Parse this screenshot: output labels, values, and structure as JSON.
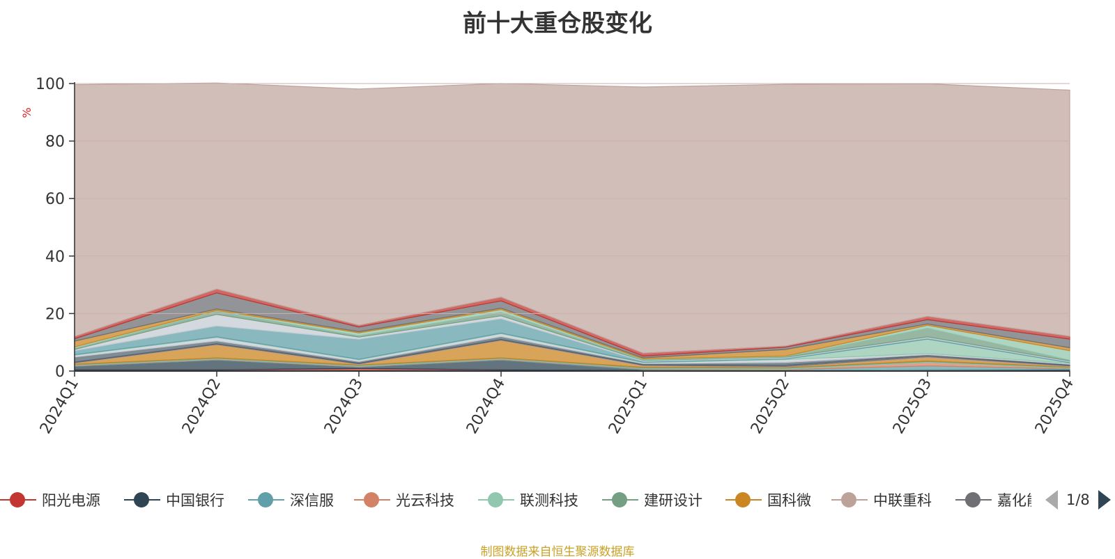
{
  "chart_data": {
    "type": "area",
    "title": "前十大重仓股变化",
    "ylabel": "%",
    "ylim": [
      0,
      100
    ],
    "yticks": [
      0,
      20,
      40,
      60,
      80,
      100
    ],
    "grid": true,
    "stacked": true,
    "categories": [
      "2024Q1",
      "2024Q2",
      "2024Q3",
      "2024Q4",
      "2025Q1",
      "2025Q2",
      "2025Q3",
      "2025Q4"
    ],
    "series": [
      {
        "name": "阳光电源",
        "color": "#c23531",
        "values": [
          0.4,
          0.4,
          0.9,
          0.4,
          0.2,
          0.1,
          0.2,
          0.2
        ]
      },
      {
        "name": "中国银行",
        "color": "#2f4554",
        "values": [
          1.2,
          3.4,
          0.4,
          3.4,
          0.2,
          0.1,
          0.2,
          0.3
        ]
      },
      {
        "name": "深信服",
        "color": "#61a0a8",
        "values": [
          0.2,
          0.2,
          0.2,
          0.2,
          0.3,
          0.3,
          1.4,
          0.3
        ]
      },
      {
        "name": "光云科技",
        "color": "#d48265",
        "values": [
          0.2,
          0.2,
          0.2,
          0.2,
          0.2,
          0.2,
          1.2,
          0.2
        ]
      },
      {
        "name": "联测科技",
        "color": "#91c7ae",
        "values": [
          0.2,
          0.2,
          0.2,
          0.2,
          0.2,
          0.3,
          0.3,
          0.2
        ]
      },
      {
        "name": "建研设计",
        "color": "#749f83",
        "values": [
          0.2,
          0.2,
          0.2,
          0.2,
          0.2,
          0.2,
          0.2,
          0.2
        ]
      },
      {
        "name": "国科微",
        "color": "#ca8622",
        "values": [
          0.3,
          4.5,
          0.2,
          6.0,
          0.5,
          0.2,
          1.2,
          0.2
        ]
      },
      {
        "name": "中联重科",
        "color": "#bda29a",
        "values": [
          0.2,
          0.2,
          0.2,
          0.2,
          0.2,
          0.2,
          0.3,
          0.2
        ]
      },
      {
        "name": "嘉化能源",
        "color": "#6e7074",
        "values": [
          0.2,
          0.2,
          0.2,
          0.2,
          0.2,
          0.4,
          0.4,
          0.2
        ]
      },
      {
        "name": "",
        "color": "#546570",
        "values": [
          1.8,
          1.0,
          0.6,
          1.0,
          0.4,
          1.0,
          0.3,
          0.4
        ]
      },
      {
        "name": "",
        "color": "#c4ccd3",
        "values": [
          0.6,
          1.2,
          0.6,
          1.0,
          0.3,
          1.0,
          0.4,
          0.3
        ]
      },
      {
        "name": "",
        "color": "#91c7ae",
        "values": [
          0.2,
          0.2,
          0.2,
          0.2,
          0.2,
          0.2,
          5.0,
          0.2
        ]
      },
      {
        "name": "",
        "color": "#61a0a8",
        "values": [
          1.4,
          3.8,
          7.0,
          5.0,
          0.3,
          0.3,
          0.4,
          0.3
        ]
      },
      {
        "name": "",
        "color": "#c4ccd3",
        "values": [
          0.4,
          4.0,
          0.7,
          1.0,
          0.3,
          0.3,
          0.4,
          0.3
        ]
      },
      {
        "name": "",
        "color": "#749f83",
        "values": [
          0.4,
          1.0,
          0.5,
          1.2,
          0.2,
          0.2,
          3.0,
          0.3
        ]
      },
      {
        "name": "",
        "color": "#91c7ae",
        "values": [
          0.5,
          0.4,
          1.0,
          1.0,
          0.3,
          0.2,
          1.0,
          3.3
        ]
      },
      {
        "name": "",
        "color": "#ca8622",
        "values": [
          2.0,
          0.5,
          0.4,
          0.5,
          0.4,
          2.3,
          0.5,
          1.0
        ]
      },
      {
        "name": "",
        "color": "#6e7074",
        "values": [
          0.8,
          5.6,
          1.6,
          2.5,
          0.6,
          0.8,
          1.5,
          3.0
        ]
      },
      {
        "name": "",
        "color": "#c23531",
        "values": [
          0.8,
          1.3,
          0.6,
          1.3,
          1.0,
          0.4,
          1.1,
          1.0
        ]
      },
      {
        "name": "",
        "color": "#bda29a",
        "values": [
          87.6,
          71.7,
          82.2,
          74.3,
          92.6,
          91.0,
          80.9,
          85.6
        ]
      }
    ]
  },
  "legend": {
    "items": [
      {
        "label": "阳光电源",
        "color": "#c23531"
      },
      {
        "label": "中国银行",
        "color": "#2f4554"
      },
      {
        "label": "深信服",
        "color": "#61a0a8"
      },
      {
        "label": "光云科技",
        "color": "#d48265"
      },
      {
        "label": "联测科技",
        "color": "#91c7ae"
      },
      {
        "label": "建研设计",
        "color": "#749f83"
      },
      {
        "label": "国科微",
        "color": "#ca8622"
      },
      {
        "label": "中联重科",
        "color": "#bda29a"
      },
      {
        "label": "嘉化能源",
        "color": "#6e7074"
      }
    ],
    "page_text": "1/8"
  },
  "source_note": "制图数据来自恒生聚源数据库",
  "colors": {
    "axis": "#333333",
    "grid": "#c8b3ae",
    "ylabel": "#e01f1f",
    "note": "#c9a227"
  }
}
